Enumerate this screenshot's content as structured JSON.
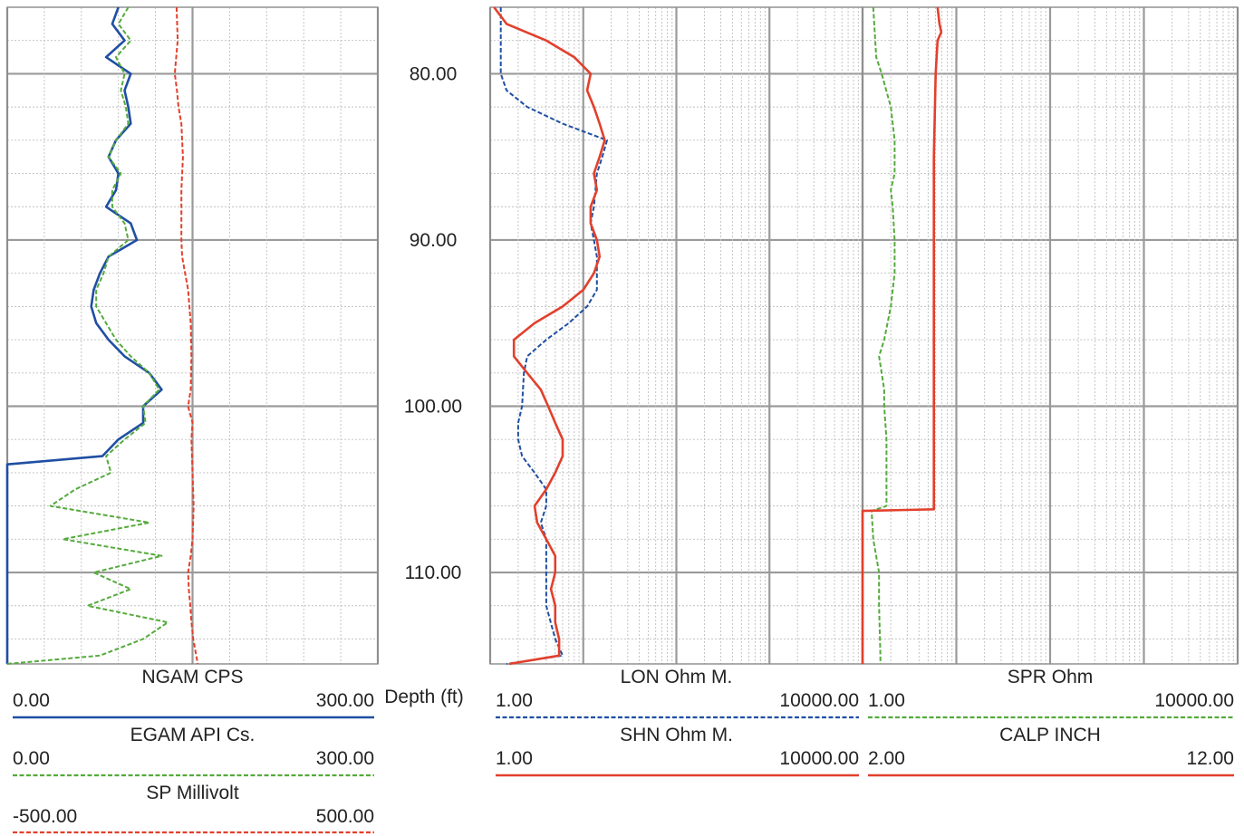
{
  "chart_data": [
    {
      "type": "line",
      "name": "track-1",
      "depth_label": "Depth (ft)",
      "depth_ticks": [
        "80.00",
        "90.00",
        "100.00",
        "110.00"
      ],
      "depth_range": [
        76,
        115.5
      ],
      "grid_divisions": 10,
      "curves": [
        {
          "key": "ngam",
          "name": "NGAM  CPS",
          "min": "0.00",
          "max": "300.00",
          "scale": [
            0,
            300
          ],
          "color": "#1f4fa3",
          "style": "solid",
          "points": [
            [
              76,
              90
            ],
            [
              77,
              85
            ],
            [
              78,
              95
            ],
            [
              79,
              80
            ],
            [
              80,
              100
            ],
            [
              81,
              95
            ],
            [
              82,
              98
            ],
            [
              83,
              100
            ],
            [
              84,
              88
            ],
            [
              85,
              82
            ],
            [
              86,
              90
            ],
            [
              87,
              88
            ],
            [
              88,
              80
            ],
            [
              89,
              100
            ],
            [
              90,
              105
            ],
            [
              91,
              82
            ],
            [
              92,
              75
            ],
            [
              93,
              70
            ],
            [
              94,
              68
            ],
            [
              95,
              72
            ],
            [
              96,
              82
            ],
            [
              97,
              95
            ],
            [
              98,
              115
            ],
            [
              99,
              125
            ],
            [
              100,
              110
            ],
            [
              101,
              110
            ],
            [
              102,
              90
            ],
            [
              103,
              77
            ],
            [
              103.5,
              0
            ],
            [
              115.5,
              0
            ]
          ]
        },
        {
          "key": "egam",
          "name": "EGAM  API Cs.",
          "min": "0.00",
          "max": "300.00",
          "scale": [
            0,
            300
          ],
          "color": "#55aa3d",
          "style": "dashed",
          "points": [
            [
              76,
              98
            ],
            [
              77,
              90
            ],
            [
              78,
              100
            ],
            [
              79,
              88
            ],
            [
              80,
              95
            ],
            [
              81,
              92
            ],
            [
              82,
              96
            ],
            [
              83,
              98
            ],
            [
              84,
              88
            ],
            [
              85,
              82
            ],
            [
              86,
              92
            ],
            [
              87,
              85
            ],
            [
              88,
              85
            ],
            [
              89,
              95
            ],
            [
              90,
              98
            ],
            [
              91,
              82
            ],
            [
              92,
              78
            ],
            [
              93,
              72
            ],
            [
              94,
              72
            ],
            [
              95,
              80
            ],
            [
              96,
              88
            ],
            [
              97,
              100
            ],
            [
              98,
              115
            ],
            [
              99,
              123
            ],
            [
              100,
              110
            ],
            [
              101,
              112
            ],
            [
              102,
              95
            ],
            [
              103,
              80
            ],
            [
              104,
              84
            ],
            [
              105,
              55
            ],
            [
              106,
              35
            ],
            [
              107,
              115
            ],
            [
              108,
              45
            ],
            [
              109,
              125
            ],
            [
              110,
              70
            ],
            [
              111,
              100
            ],
            [
              112,
              65
            ],
            [
              113,
              130
            ],
            [
              114,
              110
            ],
            [
              115,
              75
            ],
            [
              115.5,
              0
            ]
          ]
        },
        {
          "key": "sp",
          "name": "SP  Millivolt",
          "min": "-500.00",
          "max": "500.00",
          "scale": [
            -500,
            500
          ],
          "color": "#e2402c",
          "style": "dashed",
          "points": [
            [
              76,
              -43
            ],
            [
              78,
              -40
            ],
            [
              80,
              -48
            ],
            [
              81,
              -42
            ],
            [
              82,
              -38
            ],
            [
              83,
              -30
            ],
            [
              84,
              -28
            ],
            [
              85,
              -26
            ],
            [
              87,
              -30
            ],
            [
              89,
              -30
            ],
            [
              90,
              -30
            ],
            [
              91,
              -28
            ],
            [
              92,
              -20
            ],
            [
              93,
              -12
            ],
            [
              95,
              -5
            ],
            [
              97,
              -3
            ],
            [
              99,
              -5
            ],
            [
              100,
              -12
            ],
            [
              101,
              0
            ],
            [
              102,
              -3
            ],
            [
              104,
              0
            ],
            [
              106,
              3
            ],
            [
              108,
              0
            ],
            [
              109,
              -5
            ],
            [
              110,
              -12
            ],
            [
              111,
              -10
            ],
            [
              112,
              -6
            ],
            [
              113,
              -3
            ],
            [
              114,
              2
            ],
            [
              115,
              10
            ],
            [
              115.5,
              14
            ]
          ]
        }
      ]
    },
    {
      "type": "line",
      "name": "track-2",
      "scale_type": "log",
      "curves": [
        {
          "key": "lon",
          "name": "LON  Ohm M.",
          "min": "1.00",
          "max": "10000.00",
          "scale": [
            1,
            10000
          ],
          "color": "#1f4fa3",
          "style": "dashed",
          "points": [
            [
              76,
              1.3
            ],
            [
              79,
              1.3
            ],
            [
              80,
              1.3
            ],
            [
              81,
              1.5
            ],
            [
              82,
              2.5
            ],
            [
              83,
              6
            ],
            [
              84,
              18
            ],
            [
              85,
              16
            ],
            [
              86,
              14
            ],
            [
              88,
              13
            ],
            [
              89,
              12
            ],
            [
              90,
              13
            ],
            [
              91,
              14
            ],
            [
              92,
              14
            ],
            [
              93,
              14
            ],
            [
              94,
              11
            ],
            [
              95,
              7
            ],
            [
              96,
              4
            ],
            [
              97,
              2.5
            ],
            [
              98,
              2.3
            ],
            [
              100,
              2.2
            ],
            [
              101,
              2.0
            ],
            [
              102,
              2.0
            ],
            [
              103,
              2.2
            ],
            [
              104,
              3
            ],
            [
              105,
              4
            ],
            [
              106,
              4
            ],
            [
              107,
              3.5
            ],
            [
              108,
              4
            ],
            [
              110,
              4
            ],
            [
              112,
              4
            ],
            [
              114,
              5
            ],
            [
              115,
              6
            ],
            [
              115.5,
              1.5
            ]
          ]
        },
        {
          "key": "shn",
          "name": "SHN  Ohm M.",
          "min": "1.00",
          "max": "10000.00",
          "scale": [
            1,
            10000
          ],
          "color": "#e2402c",
          "style": "solid",
          "points": [
            [
              76,
              1.1
            ],
            [
              77,
              1.5
            ],
            [
              78,
              4
            ],
            [
              79,
              8
            ],
            [
              80,
              12
            ],
            [
              81,
              11
            ],
            [
              82,
              13
            ],
            [
              83,
              15
            ],
            [
              84,
              17
            ],
            [
              85,
              15
            ],
            [
              86,
              13
            ],
            [
              87,
              14
            ],
            [
              88,
              12
            ],
            [
              89,
              12
            ],
            [
              90,
              14
            ],
            [
              91,
              15
            ],
            [
              92,
              13
            ],
            [
              93,
              10
            ],
            [
              94,
              6
            ],
            [
              95,
              3
            ],
            [
              96,
              1.8
            ],
            [
              97,
              1.8
            ],
            [
              98,
              2.5
            ],
            [
              99,
              3.5
            ],
            [
              100,
              4.2
            ],
            [
              101,
              5
            ],
            [
              102,
              6
            ],
            [
              103,
              6
            ],
            [
              104,
              5
            ],
            [
              105,
              4
            ],
            [
              106,
              3
            ],
            [
              107,
              3.2
            ],
            [
              108,
              4
            ],
            [
              109,
              5
            ],
            [
              110,
              5
            ],
            [
              111,
              4.5
            ],
            [
              112,
              5
            ],
            [
              113,
              5
            ],
            [
              114,
              5.5
            ],
            [
              115,
              5.5
            ],
            [
              115.5,
              1.6
            ]
          ]
        }
      ]
    },
    {
      "type": "line",
      "name": "track-3",
      "curves": [
        {
          "key": "spr",
          "name": "SPR  Ohm",
          "min": "1.00",
          "max": "10000.00",
          "scale": [
            1,
            10000
          ],
          "color": "#55aa3d",
          "style": "dashed",
          "points": [
            [
              76,
              1.3
            ],
            [
              79,
              1.4
            ],
            [
              80,
              1.6
            ],
            [
              82,
              2
            ],
            [
              84,
              2.2
            ],
            [
              86,
              2.2
            ],
            [
              87,
              2
            ],
            [
              88,
              2.1
            ],
            [
              90,
              2.2
            ],
            [
              92,
              2.2
            ],
            [
              94,
              2
            ],
            [
              96,
              1.7
            ],
            [
              97,
              1.5
            ],
            [
              98,
              1.6
            ],
            [
              99,
              1.7
            ],
            [
              100,
              1.7
            ],
            [
              102,
              1.8
            ],
            [
              104,
              1.8
            ],
            [
              106,
              1.8
            ],
            [
              106.3,
              1.25
            ],
            [
              108,
              1.3
            ],
            [
              110,
              1.5
            ],
            [
              112,
              1.5
            ],
            [
              115,
              1.55
            ],
            [
              115.5,
              1.55
            ]
          ]
        },
        {
          "key": "calp",
          "name": "CALP  INCH",
          "min": "2.00",
          "max": "12.00",
          "scale": [
            2,
            12
          ],
          "color": "#e2402c",
          "style": "solid",
          "points": [
            [
              76,
              4.0
            ],
            [
              77,
              4.05
            ],
            [
              77.5,
              4.1
            ],
            [
              78,
              4.0
            ],
            [
              80,
              3.95
            ],
            [
              85,
              3.9
            ],
            [
              90,
              3.9
            ],
            [
              95,
              3.9
            ],
            [
              100,
              3.9
            ],
            [
              106.2,
              3.9
            ],
            [
              106.3,
              2.0
            ],
            [
              115.5,
              2.0
            ]
          ]
        }
      ]
    }
  ]
}
